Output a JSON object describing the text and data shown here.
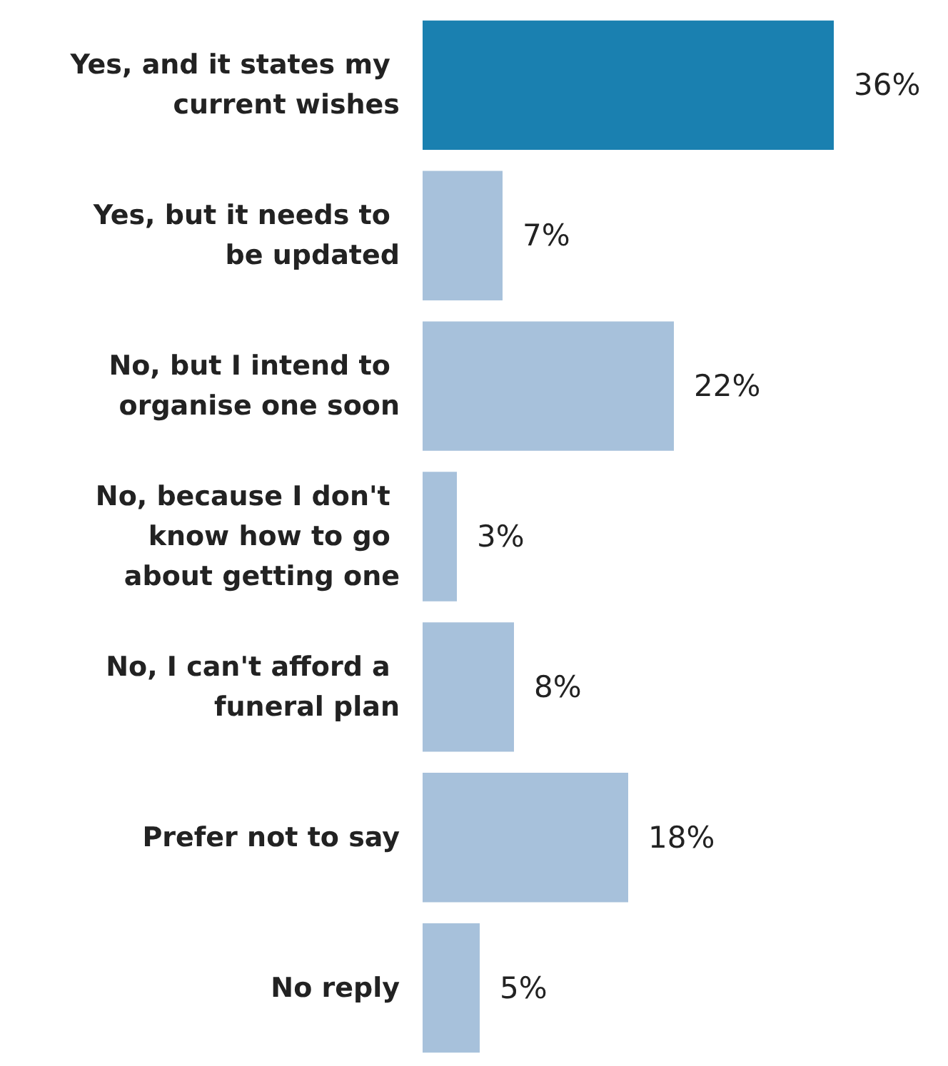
{
  "chart_data": {
    "type": "bar",
    "orientation": "horizontal",
    "categories": [
      "Yes, and it states my current wishes",
      "Yes, but it needs to be updated",
      "No, but I intend to organise one soon",
      "No, because I don't know how to go about getting one",
      "No, I can't afford a funeral plan",
      "Prefer not to say",
      "No reply"
    ],
    "values": [
      36,
      7,
      22,
      3,
      8,
      18,
      5
    ],
    "colors": [
      "#1a80b0",
      "#a7c1db",
      "#a7c1db",
      "#a7c1db",
      "#a7c1db",
      "#a7c1db",
      "#a7c1db"
    ],
    "value_labels": [
      "36%",
      "7%",
      "22%",
      "3%",
      "8%",
      "18%",
      "5%"
    ]
  }
}
